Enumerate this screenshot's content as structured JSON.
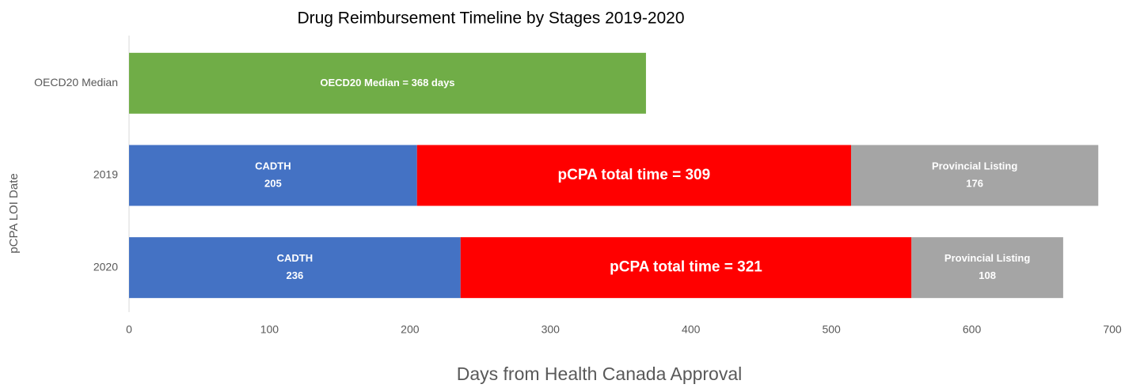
{
  "chart_data": {
    "type": "stacked-bar-horizontal",
    "title": "Drug Reimbursement Timeline by Stages 2019-2020",
    "xlabel": "Days from Health Canada Approval",
    "ylabel": "pCPA LOI Date",
    "categories": [
      "OECD20 Median",
      "2019",
      "2020"
    ],
    "series": [
      {
        "name": "OECD20 Median",
        "color": "#70ad47",
        "values": [
          368,
          null,
          null
        ],
        "value_labels": [
          "OECD20 Median = 368 days",
          null,
          null
        ]
      },
      {
        "name": "CADTH",
        "color": "#4472c4",
        "values": [
          null,
          205,
          236
        ]
      },
      {
        "name": "pCPA",
        "color": "#ff0000",
        "values": [
          null,
          309,
          321
        ],
        "value_labels": [
          null,
          "pCPA total time = 309",
          "pCPA total time = 321"
        ]
      },
      {
        "name": "Provincial Listing",
        "color": "#a5a5a5",
        "values": [
          null,
          176,
          108
        ]
      }
    ],
    "xlim": [
      0,
      700
    ],
    "xticks": [
      0,
      100,
      200,
      300,
      400,
      500,
      600,
      700
    ]
  }
}
